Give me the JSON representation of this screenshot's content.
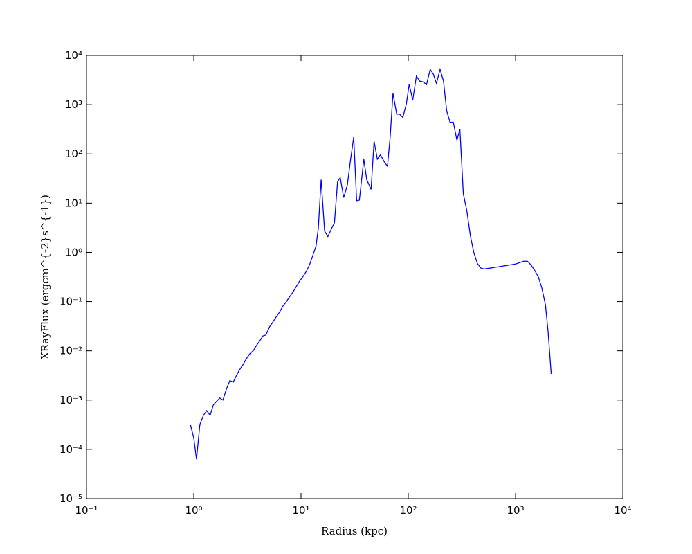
{
  "chart_data": {
    "type": "line",
    "x_label": "Radius  (kpc)",
    "y_label": "XRayFlux  (ergcm^{-2}s^{-1})",
    "xscale": "log",
    "yscale": "log",
    "xlim": [
      0.1,
      10000
    ],
    "ylim": [
      1e-05,
      10000
    ],
    "xticks": [
      {
        "value": 0.1,
        "label": "10⁻¹"
      },
      {
        "value": 1,
        "label": "10⁰"
      },
      {
        "value": 10,
        "label": "10¹"
      },
      {
        "value": 100,
        "label": "10²"
      },
      {
        "value": 1000,
        "label": "10³"
      },
      {
        "value": 10000,
        "label": "10⁴"
      }
    ],
    "yticks": [
      {
        "value": 1e-05,
        "label": "10⁻⁵"
      },
      {
        "value": 0.0001,
        "label": "10⁻⁴"
      },
      {
        "value": 0.001,
        "label": "10⁻³"
      },
      {
        "value": 0.01,
        "label": "10⁻²"
      },
      {
        "value": 0.1,
        "label": "10⁻¹"
      },
      {
        "value": 1,
        "label": "10⁰"
      },
      {
        "value": 10,
        "label": "10¹"
      },
      {
        "value": 100,
        "label": "10²"
      },
      {
        "value": 1000,
        "label": "10³"
      },
      {
        "value": 10000,
        "label": "10⁴"
      }
    ],
    "grid": false,
    "series": [
      {
        "color": "#0000ff",
        "x": [
          0.93,
          1.0,
          1.06,
          1.14,
          1.23,
          1.32,
          1.42,
          1.52,
          1.62,
          1.75,
          1.87,
          2.0,
          2.17,
          2.33,
          2.49,
          2.67,
          2.87,
          3.09,
          3.33,
          3.58,
          3.8,
          4.1,
          4.4,
          4.7,
          5.1,
          5.4,
          5.8,
          6.3,
          6.8,
          7.3,
          7.8,
          8.4,
          9.0,
          9.7,
          10.4,
          11.2,
          12.0,
          12.8,
          13.8,
          14.5,
          15.4,
          16.6,
          17.8,
          19.2,
          20.5,
          21.9,
          23.2,
          25,
          27,
          29,
          31,
          33,
          35,
          38.5,
          41,
          45,
          48,
          51.5,
          55,
          60,
          64,
          68,
          72,
          78,
          83,
          89,
          96,
          102,
          110,
          119,
          128,
          137,
          148,
          160,
          171,
          183,
          198,
          213,
          228,
          245,
          263,
          284,
          303,
          326,
          352,
          379,
          408,
          440,
          475,
          510,
          692,
          1000,
          1190,
          1290,
          1390,
          1500,
          1630,
          1760,
          1900,
          2010,
          2150
        ],
        "values": [
          0.00032,
          0.00017,
          6.3e-05,
          0.00032,
          0.00049,
          0.00061,
          0.00049,
          0.00079,
          0.00093,
          0.0011,
          0.001,
          0.0016,
          0.0025,
          0.0023,
          0.0031,
          0.0041,
          0.0052,
          0.0069,
          0.0087,
          0.01,
          0.0124,
          0.0156,
          0.02,
          0.021,
          0.031,
          0.037,
          0.047,
          0.061,
          0.082,
          0.1,
          0.124,
          0.155,
          0.2,
          0.26,
          0.32,
          0.41,
          0.56,
          0.83,
          1.35,
          3.1,
          30,
          2.7,
          2.1,
          3.0,
          4.0,
          27,
          33,
          13,
          23,
          78,
          220,
          11.2,
          11.5,
          78,
          30,
          19,
          180,
          78,
          96,
          68,
          56,
          240,
          1700,
          640,
          640,
          550,
          1040,
          2600,
          1230,
          3800,
          3000,
          2900,
          2550,
          5200,
          4200,
          2700,
          5200,
          3000,
          750,
          440,
          440,
          190,
          315,
          15.5,
          6.9,
          2.2,
          1.0,
          0.6,
          0.48,
          0.46,
          0.51,
          0.58,
          0.66,
          0.66,
          0.56,
          0.44,
          0.32,
          0.19,
          0.086,
          0.025,
          0.0034
        ]
      }
    ]
  }
}
